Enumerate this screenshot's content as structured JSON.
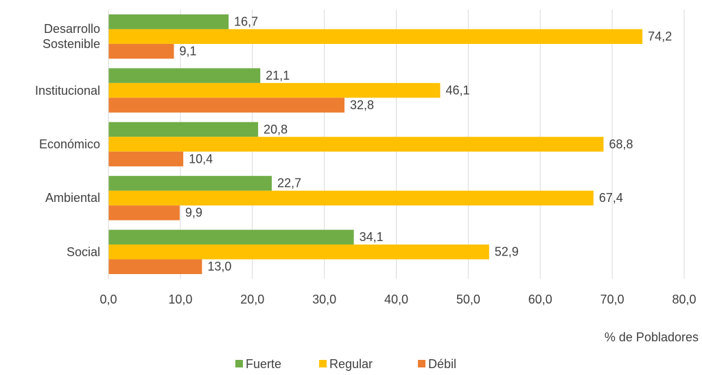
{
  "chart_data": {
    "type": "hbar",
    "categories": [
      "Desarrollo Sostenible",
      "Institucional",
      "Económico",
      "Ambiental",
      "Social"
    ],
    "series": [
      {
        "name": "Fuerte",
        "color": "#70ad47",
        "values": [
          16.7,
          21.1,
          20.8,
          22.7,
          34.1
        ],
        "value_labels": [
          "16,7",
          "21,1",
          "20,8",
          "22,7",
          "34,1"
        ]
      },
      {
        "name": "Regular",
        "color": "#ffc000",
        "values": [
          74.2,
          46.1,
          68.8,
          67.4,
          52.9
        ],
        "value_labels": [
          "74,2",
          "46,1",
          "68,8",
          "67,4",
          "52,9"
        ]
      },
      {
        "name": "Débil",
        "color": "#ed7d31",
        "values": [
          9.1,
          32.8,
          10.4,
          9.9,
          13.0
        ],
        "value_labels": [
          "9,1",
          "32,8",
          "10,4",
          "9,9",
          "13,0"
        ]
      }
    ],
    "x_label": "% de Pobladores",
    "xlim": [
      0,
      80
    ],
    "xticks": [
      {
        "value": 0,
        "label": "0,0"
      },
      {
        "value": 10,
        "label": "10,0"
      },
      {
        "value": 20,
        "label": "20,0"
      },
      {
        "value": 30,
        "label": "30,0"
      },
      {
        "value": 40,
        "label": "40,0"
      },
      {
        "value": 50,
        "label": "50,0"
      },
      {
        "value": 60,
        "label": "60,0"
      },
      {
        "value": 70,
        "label": "70,0"
      },
      {
        "value": 80,
        "label": "80,0"
      }
    ],
    "grid": true,
    "legend": "bottom"
  }
}
